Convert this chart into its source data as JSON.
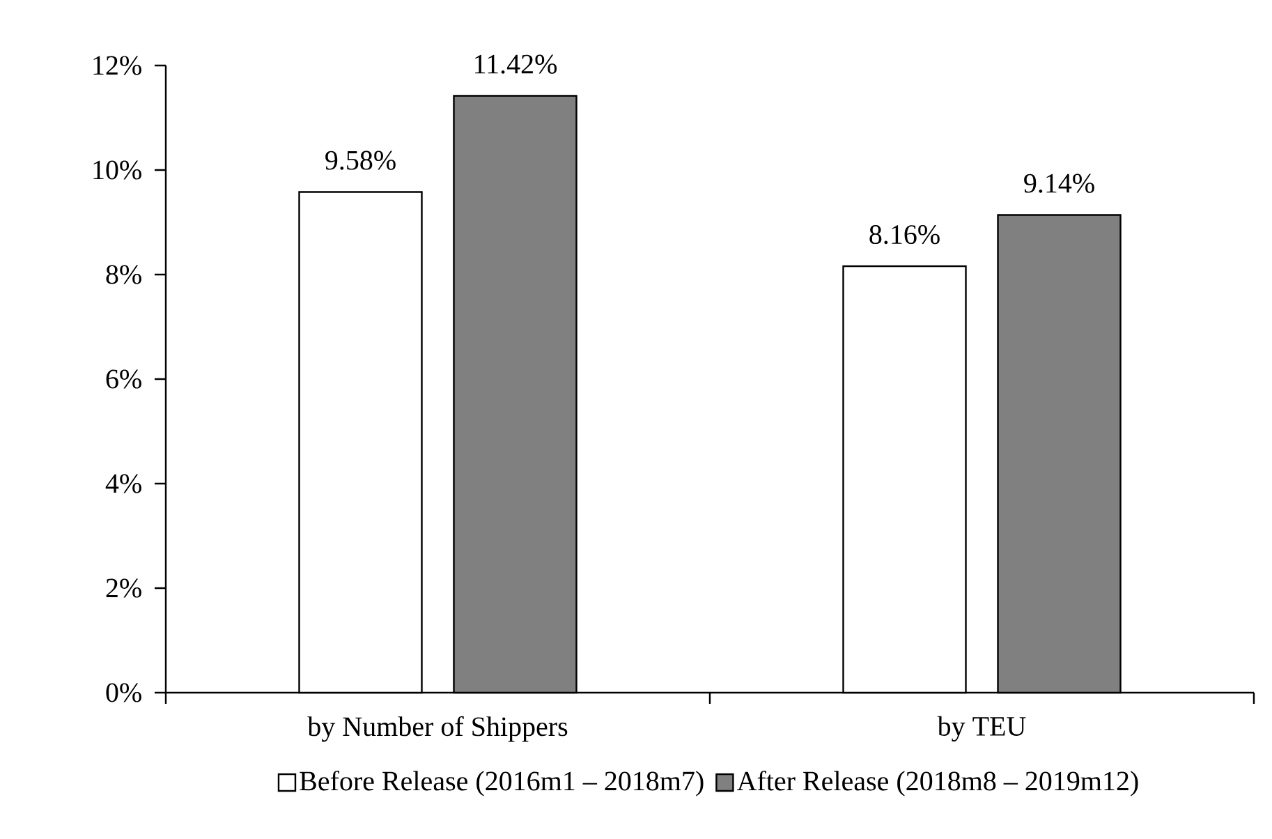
{
  "chart_data": {
    "type": "bar",
    "categories": [
      "by Number of Shippers",
      "by TEU"
    ],
    "series": [
      {
        "name": "Before Release (2016m1 – 2018m7)",
        "color": "#ffffff",
        "values": [
          9.58,
          8.16
        ],
        "value_labels": [
          "9.58%",
          "8.16%"
        ]
      },
      {
        "name": "After Release (2018m8 – 2019m12)",
        "color": "#808080",
        "values": [
          11.42,
          9.14
        ],
        "value_labels": [
          "11.42%",
          "9.14%"
        ]
      }
    ],
    "ylim": [
      0,
      12
    ],
    "yticks": [
      {
        "value": 0,
        "label": "0%"
      },
      {
        "value": 2,
        "label": "2%"
      },
      {
        "value": 4,
        "label": "4%"
      },
      {
        "value": 6,
        "label": "6%"
      },
      {
        "value": 8,
        "label": "8%"
      },
      {
        "value": 10,
        "label": "10%"
      },
      {
        "value": 12,
        "label": "12%"
      }
    ],
    "legend": "bottom"
  }
}
